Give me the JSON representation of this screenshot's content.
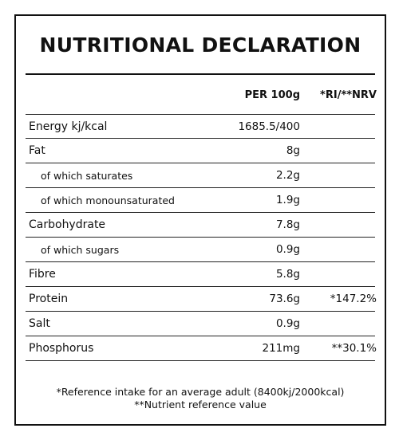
{
  "label": {
    "title": "NUTRITIONAL DECLARATION",
    "col_per_100g": "PER 100g",
    "col_ri_nrv": "*RI/**NRV"
  },
  "rows": [
    {
      "name": "Energy kj/kcal",
      "value": "1685.5/400",
      "ri": ""
    },
    {
      "name": "Fat",
      "value": "8g",
      "ri": ""
    },
    {
      "name": "of which saturates",
      "value": "2.2g",
      "ri": ""
    },
    {
      "name": "of which monounsaturated",
      "value": "1.9g",
      "ri": ""
    },
    {
      "name": "Carbohydrate",
      "value": "7.8g",
      "ri": ""
    },
    {
      "name": "of which sugars",
      "value": "0.9g",
      "ri": ""
    },
    {
      "name": "Fibre",
      "value": "5.8g",
      "ri": ""
    },
    {
      "name": "Protein",
      "value": "73.6g",
      "ri": "*147.2%"
    },
    {
      "name": "Salt",
      "value": "0.9g",
      "ri": ""
    },
    {
      "name": "Phosphorus",
      "value": "211mg",
      "ri": "**30.1%"
    }
  ],
  "footnotes": {
    "ri_note": "*Reference intake for an average adult (8400kj/2000kcal)",
    "nrv_note": "**Nutrient reference value"
  }
}
